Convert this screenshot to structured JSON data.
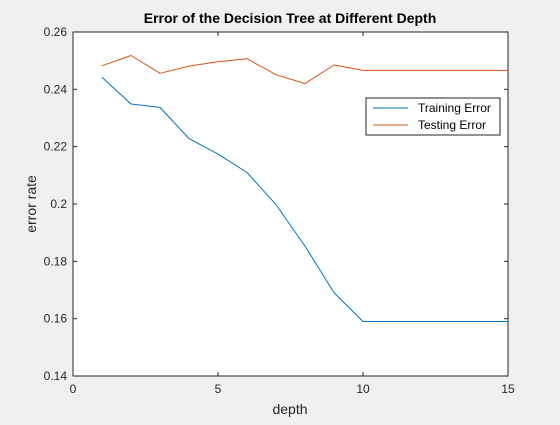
{
  "chart_data": {
    "type": "line",
    "title": "Error of the Decision Tree at Different Depth",
    "xlabel": "depth",
    "ylabel": "error rate",
    "xlim": [
      0,
      15
    ],
    "ylim": [
      0.14,
      0.26
    ],
    "xticks": [
      0,
      5,
      10,
      15
    ],
    "xtick_labels": [
      "0",
      "5",
      "10",
      "15"
    ],
    "yticks": [
      0.14,
      0.16,
      0.18,
      0.2,
      0.22,
      0.24,
      0.26
    ],
    "ytick_labels": [
      "0.14",
      "0.16",
      "0.18",
      "0.2",
      "0.22",
      "0.24",
      "0.26"
    ],
    "grid": false,
    "legend_position": "top-right",
    "series": [
      {
        "name": "Training Error",
        "color": "#0072BD",
        "x": [
          1,
          2,
          3,
          4,
          5,
          6,
          7,
          8,
          9,
          10,
          11,
          12,
          13,
          14,
          15
        ],
        "y": [
          0.2442,
          0.2349,
          0.2337,
          0.2228,
          0.2174,
          0.211,
          0.1998,
          0.1853,
          0.1691,
          0.159,
          0.159,
          0.159,
          0.159,
          0.159,
          0.159
        ]
      },
      {
        "name": "Testing Error",
        "color": "#D95319",
        "x": [
          1,
          2,
          3,
          4,
          5,
          6,
          7,
          8,
          9,
          10,
          11,
          12,
          13,
          14,
          15
        ],
        "y": [
          0.2482,
          0.2518,
          0.2456,
          0.2481,
          0.2496,
          0.2507,
          0.2451,
          0.242,
          0.2485,
          0.2466,
          0.2466,
          0.2466,
          0.2466,
          0.2466,
          0.2466
        ]
      }
    ]
  }
}
